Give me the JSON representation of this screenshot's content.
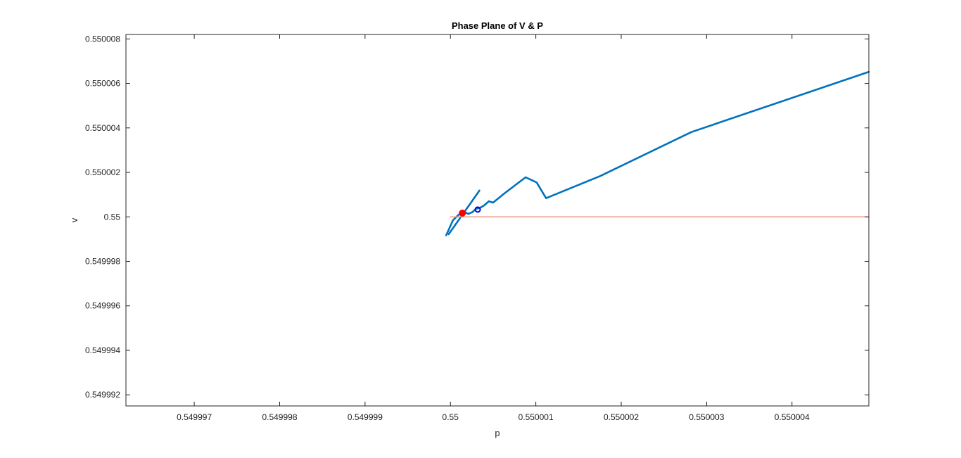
{
  "chart_data": {
    "type": "line",
    "title": "Phase Plane of V & P",
    "xlabel": "p",
    "ylabel": "v",
    "xlim": [
      0.5499962,
      0.5500049
    ],
    "ylim": [
      0.5499915,
      0.5500082
    ],
    "grid": false,
    "x_ticks": [
      0.549997,
      0.549998,
      0.549999,
      0.55,
      0.550001,
      0.550002,
      0.550003,
      0.550004
    ],
    "x_tick_labels": [
      "0.549997",
      "0.549998",
      "0.549999",
      "0.55",
      "0.550001",
      "0.550002",
      "0.550003",
      "0.550004"
    ],
    "y_ticks": [
      0.549992,
      0.549994,
      0.549996,
      0.549998,
      0.55,
      0.550002,
      0.550004,
      0.550006,
      0.550008
    ],
    "y_tick_labels": [
      "0.549992",
      "0.549994",
      "0.549996",
      "0.549998",
      "0.55",
      "0.550002",
      "0.550004",
      "0.550006",
      "0.550008"
    ],
    "series": [
      {
        "color": "#0072BD",
        "style": "line",
        "x": [
          0.54999995,
          0.55000003,
          0.55000012,
          0.55000017,
          0.55000021,
          0.55000026,
          0.5500003,
          0.55000034,
          0.55000039,
          0.55000045,
          0.5500005,
          0.55000063,
          0.55000088,
          0.55000101,
          0.55000112,
          0.55000175,
          0.55000282,
          0.5500049
        ],
        "y": [
          0.54999917,
          0.54999985,
          0.55000018,
          0.55000021,
          0.55000013,
          0.55000022,
          0.55000037,
          0.55000039,
          0.5500005,
          0.5500007,
          0.55000064,
          0.55000105,
          0.55000178,
          0.55000155,
          0.55000084,
          0.55000183,
          0.55000381,
          0.55000652
        ]
      },
      {
        "color": "#0072BD",
        "style": "line",
        "x": [
          0.54999998,
          0.55000034
        ],
        "y": [
          0.54999922,
          0.55000118
        ]
      },
      {
        "color": "#EE9C85",
        "style": "line",
        "x": [
          0.55,
          0.5500049
        ],
        "y": [
          0.55,
          0.55
        ]
      },
      {
        "color": "#FF0000",
        "style": "marker-filled",
        "x": [
          0.55000014
        ],
        "y": [
          0.55000017
        ]
      },
      {
        "color": "#0000FF",
        "style": "marker-open",
        "x": [
          0.55000032
        ],
        "y": [
          0.55000033
        ]
      }
    ]
  }
}
